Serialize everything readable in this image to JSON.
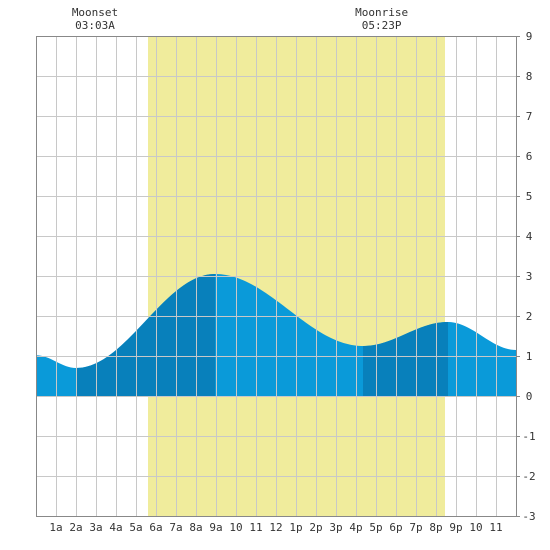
{
  "chart_data": {
    "type": "area",
    "title": "",
    "xlabel": "",
    "ylabel": "",
    "x_range_hours": [
      0,
      24
    ],
    "ylim": [
      -3,
      9
    ],
    "y_ticks": [
      -3,
      -2,
      -1,
      0,
      1,
      2,
      3,
      4,
      5,
      6,
      7,
      8,
      9
    ],
    "x_ticks": [
      {
        "hour": 1,
        "label": "1a"
      },
      {
        "hour": 2,
        "label": "2a"
      },
      {
        "hour": 3,
        "label": "3a"
      },
      {
        "hour": 4,
        "label": "4a"
      },
      {
        "hour": 5,
        "label": "5a"
      },
      {
        "hour": 6,
        "label": "6a"
      },
      {
        "hour": 7,
        "label": "7a"
      },
      {
        "hour": 8,
        "label": "8a"
      },
      {
        "hour": 9,
        "label": "9a"
      },
      {
        "hour": 10,
        "label": "10"
      },
      {
        "hour": 11,
        "label": "11"
      },
      {
        "hour": 12,
        "label": "12"
      },
      {
        "hour": 13,
        "label": "1p"
      },
      {
        "hour": 14,
        "label": "2p"
      },
      {
        "hour": 15,
        "label": "3p"
      },
      {
        "hour": 16,
        "label": "4p"
      },
      {
        "hour": 17,
        "label": "5p"
      },
      {
        "hour": 18,
        "label": "6p"
      },
      {
        "hour": 19,
        "label": "7p"
      },
      {
        "hour": 20,
        "label": "8p"
      },
      {
        "hour": 21,
        "label": "9p"
      },
      {
        "hour": 22,
        "label": "10"
      },
      {
        "hour": 23,
        "label": "11"
      }
    ],
    "grid": true,
    "daylight": {
      "start_hour": 5.6,
      "end_hour": 20.45,
      "color": "#f0ec9c"
    },
    "tide_extremes": [
      {
        "hour": 2.0,
        "height": 0.7,
        "type": "low"
      },
      {
        "hour": 8.95,
        "height": 3.05,
        "type": "high"
      },
      {
        "hour": 16.35,
        "height": 1.25,
        "type": "low"
      },
      {
        "hour": 20.6,
        "height": 1.85,
        "type": "high"
      }
    ],
    "tide_start": {
      "hour": 0,
      "height": 1.02
    },
    "tide_end": {
      "hour": 24,
      "height": 1.15
    },
    "dark_bands": [
      {
        "start_hour": 2.0,
        "end_hour": 8.95
      },
      {
        "start_hour": 16.35,
        "end_hour": 20.6
      }
    ],
    "colors": {
      "tide": "#0a9ad9",
      "tide_dark": "#0880bb",
      "grid": "#c8c8c8",
      "frame": "#888888"
    },
    "moon_events": [
      {
        "label": "Moonset",
        "time": "03:03A",
        "hour": 3.05
      },
      {
        "label": "Moonrise",
        "time": "05:23P",
        "hour": 17.38
      }
    ]
  }
}
